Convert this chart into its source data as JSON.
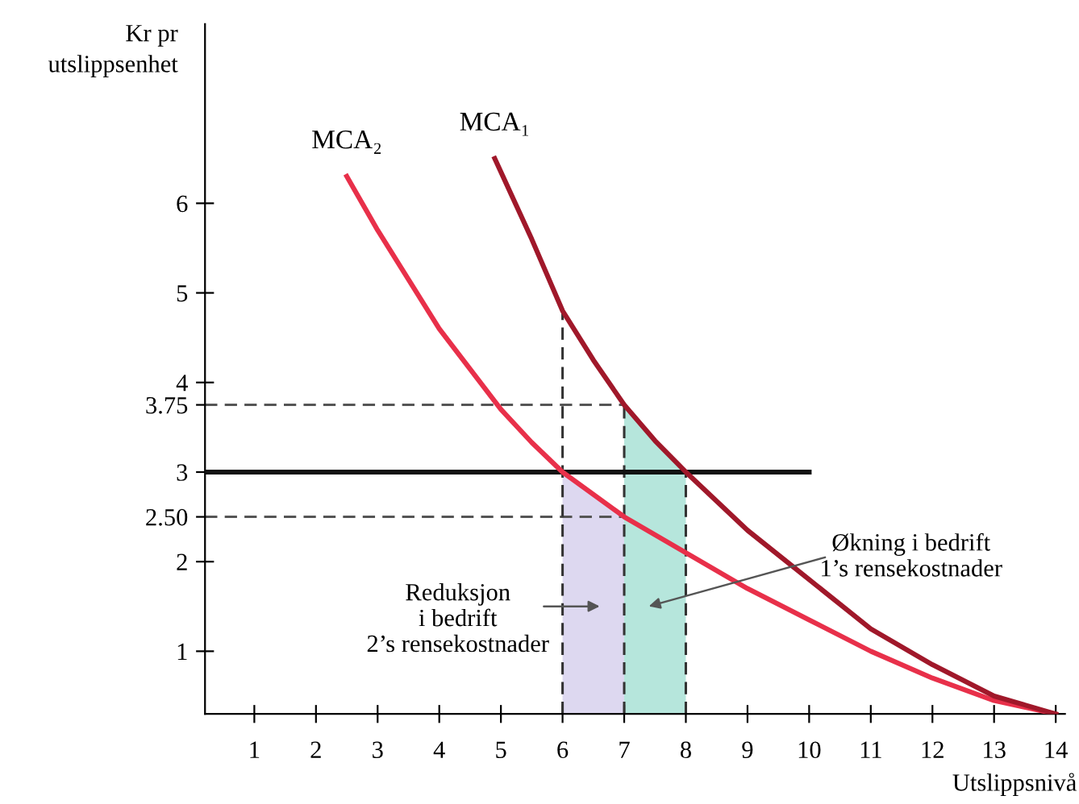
{
  "chart_data": {
    "type": "line",
    "xlabel": "Utslippsnivå",
    "ylabel": "Kr pr\nutslippsenhet",
    "xlim": [
      0.2,
      14.15
    ],
    "ylim": [
      0.3,
      8.0
    ],
    "xticks": [
      1,
      2,
      3,
      4,
      5,
      6,
      7,
      8,
      9,
      10,
      11,
      12,
      13,
      14
    ],
    "yticks": [
      1,
      2,
      {
        "value": 2.5,
        "label": "2.50"
      },
      3,
      {
        "value": 3.75,
        "label": "3.75"
      },
      4,
      5,
      6
    ],
    "grid": false,
    "legend": false,
    "series": [
      {
        "type": "area",
        "color": "#ddd8f0",
        "x": [
          6,
          6.5,
          7
        ],
        "values": [
          3,
          2.75,
          2.5
        ]
      },
      {
        "type": "area",
        "color": "#b6e6dc",
        "x": [
          7,
          7.5,
          8
        ],
        "values": [
          3.75,
          3.35,
          3
        ]
      },
      {
        "type": "line",
        "line_style": "dashed",
        "color": "#555555",
        "x": [
          0.2,
          7
        ],
        "values": [
          3.75,
          3.75
        ]
      },
      {
        "type": "line",
        "line_style": "dashed",
        "color": "#555555",
        "x": [
          0.2,
          7
        ],
        "values": [
          2.5,
          2.5
        ]
      },
      {
        "type": "line",
        "line_style": "dashed",
        "color": "#333333",
        "x": [
          6,
          6
        ],
        "values": [
          0.3,
          4.8
        ]
      },
      {
        "type": "line",
        "line_style": "dashed",
        "color": "#333333",
        "x": [
          7,
          7
        ],
        "values": [
          0.3,
          3.75
        ]
      },
      {
        "type": "line",
        "line_style": "dashed",
        "color": "#333333",
        "x": [
          8,
          8
        ],
        "values": [
          0.3,
          3
        ]
      },
      {
        "type": "line",
        "line_style": "solid",
        "color": "#111111",
        "x": [
          0.2,
          10
        ],
        "values": [
          3,
          3
        ]
      },
      {
        "name": "MCA₂",
        "color": "#e8304a",
        "x": [
          2.5,
          3,
          4,
          5,
          5.5,
          6,
          7,
          8,
          9,
          10,
          11,
          12,
          13,
          14
        ],
        "values": [
          6.3,
          5.7,
          4.6,
          3.7,
          3.33,
          3,
          2.5,
          2.1,
          1.7,
          1.35,
          1.0,
          0.7,
          0.45,
          0.3
        ]
      },
      {
        "name": "MCA₁",
        "color": "#a0182a",
        "x": [
          4.9,
          5.5,
          6,
          6.5,
          7,
          7.5,
          8,
          9,
          10,
          11,
          12,
          13,
          14
        ],
        "values": [
          6.5,
          5.6,
          4.8,
          4.25,
          3.75,
          3.35,
          3,
          2.35,
          1.8,
          1.25,
          0.85,
          0.5,
          0.3
        ]
      }
    ],
    "annotations": [
      "Reduksjon\ni bedrift\n2’s rensekostnader",
      "Økning i bedrift\n1’s rensekostnader"
    ]
  }
}
